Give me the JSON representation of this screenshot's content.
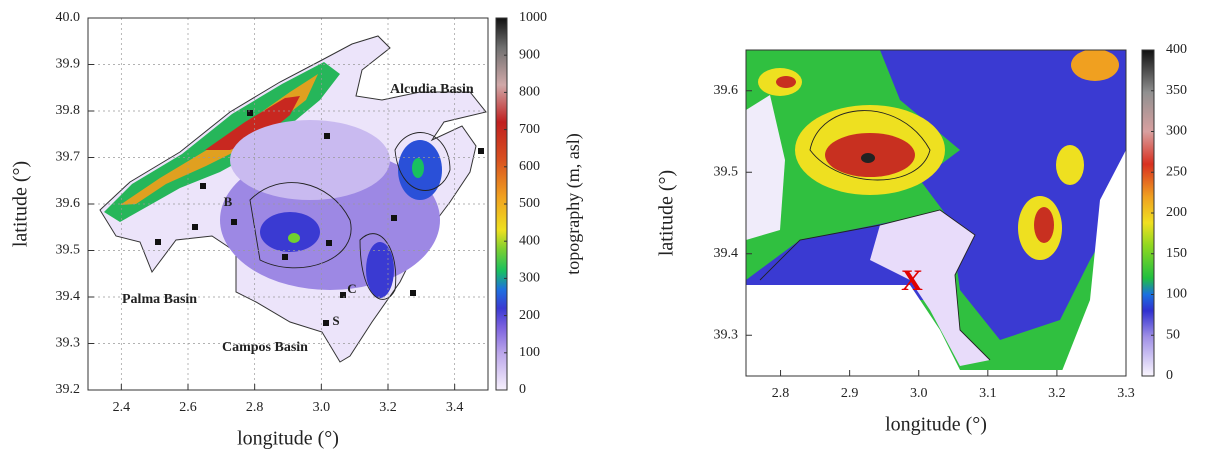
{
  "panels": [
    {
      "xlabel": "longitude (°)",
      "ylabel": "latitude (°)",
      "xlim": [
        2.3,
        3.5
      ],
      "ylim": [
        39.2,
        40.0
      ],
      "xticks": [
        2.4,
        2.6,
        2.8,
        {
          "value": 3.0,
          "label": "3.0"
        },
        3.2,
        3.4
      ],
      "yticks": [
        39.2,
        39.3,
        39.4,
        39.5,
        39.6,
        39.7,
        39.8,
        39.9,
        {
          "value": 40.0,
          "label": "40.0"
        }
      ],
      "grid": true,
      "colorbar": {
        "label": "topography (m, asl)",
        "lim": [
          0,
          1000
        ],
        "ticks": [
          0,
          100,
          200,
          300,
          400,
          500,
          600,
          700,
          800,
          900,
          1000
        ]
      },
      "annotations": [
        "Alcudia Basin",
        "Palma Basin",
        "Campos Basin",
        "B",
        "C",
        "S"
      ]
    },
    {
      "xlabel": "longitude (°)",
      "ylabel": "latitude (°)",
      "xlim": [
        2.75,
        3.3
      ],
      "ylim": [
        39.25,
        39.65
      ],
      "xticks": [
        2.8,
        2.9,
        {
          "value": 3.0,
          "label": "3.0"
        },
        3.1,
        3.2,
        3.3
      ],
      "yticks": [
        39.3,
        39.4,
        39.5,
        39.6
      ],
      "grid": false,
      "colorbar": {
        "lim": [
          0,
          400
        ],
        "ticks": [
          0,
          50,
          100,
          150,
          200,
          250,
          300,
          350,
          400
        ]
      },
      "annotations": [
        "X"
      ]
    }
  ]
}
